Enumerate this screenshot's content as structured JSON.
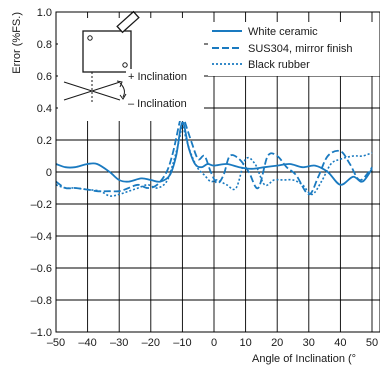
{
  "colors": {
    "series": "#1a7ac0",
    "grid": "#000000",
    "text": "#1a1a1a"
  },
  "inset": {
    "plus_label": "+ Inclination",
    "minus_label": "– Inclination"
  },
  "chart_data": {
    "type": "line",
    "xlabel": "Angle of Inclination (°",
    "ylabel": "Error (%FS.)",
    "xlim": [
      -50,
      50
    ],
    "ylim": [
      -1.0,
      1.0
    ],
    "xticks": [
      -50,
      -40,
      -30,
      -20,
      -10,
      0,
      10,
      20,
      30,
      40,
      50
    ],
    "xtick_labels": [
      "–50",
      "–40",
      "–30",
      "–20",
      "–10",
      "0",
      "10",
      "20",
      "30",
      "40",
      "50"
    ],
    "yticks": [
      1.0,
      0.8,
      0.6,
      0.4,
      0.2,
      0,
      -0.2,
      -0.4,
      -0.6,
      -0.8,
      -1.0
    ],
    "ytick_labels": [
      "1.0",
      "0.8",
      "0.6",
      "0.4",
      "0.2",
      "0",
      "–0.2",
      "–0.4",
      "–0.6",
      "–0.8",
      "–1.0"
    ],
    "grid": true,
    "legend_position": "top-right",
    "series": [
      {
        "name": "White ceramic",
        "style": "solid",
        "x": [
          -50,
          -47,
          -44,
          -40,
          -37,
          -33,
          -30,
          -27,
          -23,
          -20,
          -17,
          -14,
          -12,
          -10,
          -8,
          -6,
          -4,
          -2,
          0,
          4,
          8,
          12,
          16,
          20,
          24,
          28,
          32,
          36,
          40,
          44,
          47,
          50
        ],
        "y": [
          0.05,
          0.03,
          0.03,
          0.05,
          0.05,
          0.0,
          -0.05,
          -0.06,
          -0.04,
          -0.05,
          -0.06,
          -0.02,
          0.1,
          0.31,
          0.15,
          0.05,
          0.03,
          0.05,
          0.04,
          0.05,
          0.03,
          0.02,
          0.03,
          0.04,
          0.05,
          0.03,
          0.04,
          0.0,
          -0.08,
          -0.03,
          -0.06,
          0.02
        ]
      },
      {
        "name": "SUS304, mirror finish",
        "style": "dashed",
        "x": [
          -50,
          -47,
          -44,
          -40,
          -37,
          -33,
          -30,
          -27,
          -24,
          -21,
          -18,
          -15,
          -13,
          -11,
          -10,
          -9,
          -7,
          -5,
          -3,
          -1,
          1,
          3,
          5,
          8,
          11,
          14,
          17,
          20,
          23,
          26,
          30,
          33,
          36,
          40,
          43,
          46,
          49,
          50
        ],
        "y": [
          -0.06,
          -0.1,
          -0.1,
          -0.11,
          -0.12,
          -0.12,
          -0.12,
          -0.1,
          -0.08,
          -0.1,
          -0.08,
          0.0,
          0.12,
          0.3,
          0.36,
          0.3,
          0.18,
          0.08,
          0.1,
          0.0,
          -0.07,
          -0.02,
          0.1,
          0.08,
          0.0,
          -0.1,
          0.1,
          0.1,
          0.03,
          -0.02,
          -0.14,
          -0.03,
          0.1,
          0.13,
          0.05,
          -0.05,
          0.0,
          0.03
        ]
      },
      {
        "name": "Black rubber",
        "style": "dotted",
        "x": [
          -50,
          -47,
          -44,
          -40,
          -36,
          -33,
          -30,
          -27,
          -24,
          -21,
          -18,
          -15,
          -13,
          -11,
          -10,
          -9,
          -7,
          -5,
          -3,
          -1,
          1,
          4,
          7,
          10,
          13,
          16,
          19,
          22,
          25,
          28,
          31,
          34,
          37,
          40,
          44,
          47,
          50
        ],
        "y": [
          -0.08,
          -0.1,
          -0.1,
          -0.11,
          -0.12,
          -0.15,
          -0.14,
          -0.12,
          -0.1,
          -0.08,
          -0.1,
          -0.06,
          0.05,
          0.2,
          0.3,
          0.22,
          0.1,
          0.02,
          -0.02,
          -0.06,
          -0.05,
          -0.08,
          -0.1,
          0.08,
          0.05,
          -0.08,
          -0.05,
          -0.05,
          -0.05,
          -0.08,
          -0.14,
          -0.06,
          0.05,
          0.08,
          0.1,
          0.1,
          0.12
        ]
      }
    ]
  }
}
